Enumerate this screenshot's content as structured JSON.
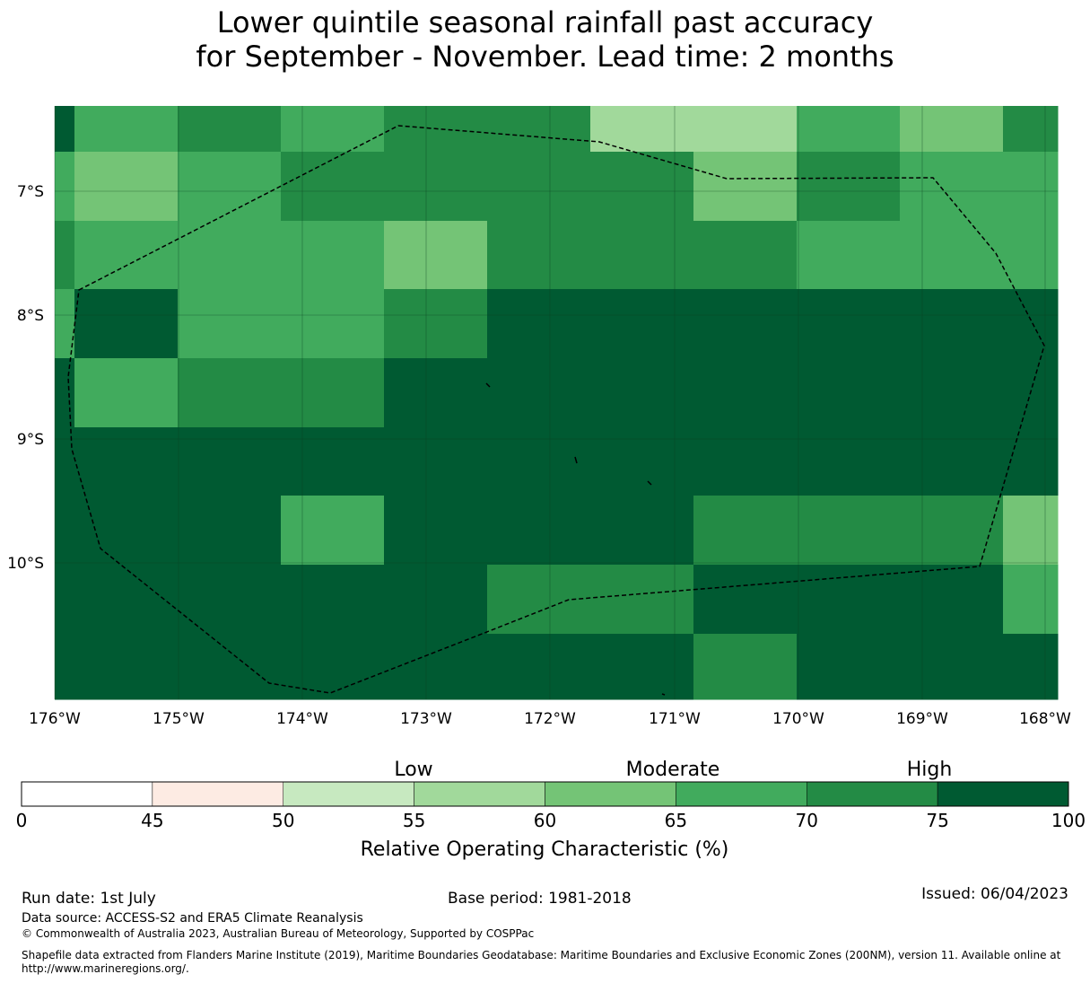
{
  "title": {
    "line1": "Lower quintile seasonal rainfall past accuracy",
    "line2": "for September - November. Lead time: 2 months"
  },
  "map": {
    "lon_ticks": [
      "176°W",
      "175°W",
      "174°W",
      "173°W",
      "172°W",
      "171°W",
      "170°W",
      "169°W",
      "168°W"
    ],
    "lat_ticks": [
      "7°S",
      "8°S",
      "9°S",
      "10°S"
    ],
    "grid_rows": [
      [
        75,
        65,
        70,
        65,
        70,
        70,
        55,
        55,
        65,
        60,
        70
      ],
      [
        65,
        60,
        65,
        70,
        70,
        70,
        70,
        60,
        70,
        65,
        65
      ],
      [
        70,
        65,
        65,
        65,
        60,
        70,
        70,
        70,
        65,
        65,
        65
      ],
      [
        65,
        75,
        65,
        65,
        70,
        75,
        75,
        75,
        75,
        75,
        75
      ],
      [
        75,
        65,
        70,
        70,
        75,
        75,
        75,
        75,
        75,
        75,
        75
      ],
      [
        75,
        75,
        75,
        75,
        75,
        75,
        75,
        75,
        75,
        75,
        75
      ],
      [
        75,
        75,
        75,
        65,
        75,
        75,
        75,
        70,
        70,
        70,
        60
      ],
      [
        75,
        75,
        75,
        75,
        75,
        70,
        70,
        75,
        75,
        75,
        65
      ],
      [
        75,
        75,
        75,
        75,
        75,
        75,
        75,
        70,
        75,
        75,
        75
      ]
    ]
  },
  "legend": {
    "category_low": "Low",
    "category_moderate": "Moderate",
    "category_high": "High",
    "bins": [
      {
        "from": 0,
        "to": 45,
        "color": "#ffffff"
      },
      {
        "from": 45,
        "to": 50,
        "color": "#fdebe3"
      },
      {
        "from": 50,
        "to": 55,
        "color": "#c7e9c0"
      },
      {
        "from": 55,
        "to": 60,
        "color": "#a1d99b"
      },
      {
        "from": 60,
        "to": 65,
        "color": "#74c476"
      },
      {
        "from": 65,
        "to": 70,
        "color": "#41ab5d"
      },
      {
        "from": 70,
        "to": 75,
        "color": "#238b45"
      },
      {
        "from": 75,
        "to": 100,
        "color": "#005a32"
      }
    ],
    "ticks": [
      "0",
      "45",
      "50",
      "55",
      "60",
      "65",
      "70",
      "75",
      "100"
    ],
    "label": "Relative Operating Characteristic (%)"
  },
  "footer": {
    "run_date": "Run date: 1st July",
    "base_period": "Base period: 1981-2018",
    "issued": "Issued: 06/04/2023",
    "data_source": "Data source: ACCESS-S2 and ERA5 Climate Reanalysis",
    "copyright": "© Commonwealth of Australia 2023, Australian Bureau of Meteorology, Supported by COSPPac",
    "shapefile_line1": "Shapefile data extracted from Flanders Marine Institute (2019), Maritime Boundaries Geodatabase: Maritime Boundaries and Exclusive Economic Zones (200NM), version 11. Available online at",
    "shapefile_line2": "http://www.marineregions.org/."
  }
}
